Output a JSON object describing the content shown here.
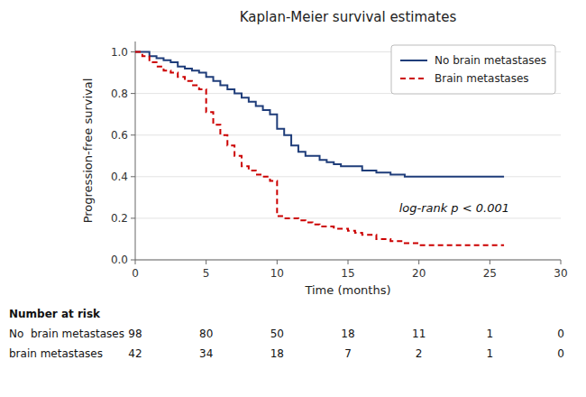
{
  "chart_data": {
    "type": "step",
    "title": "Kaplan-Meier survival estimates",
    "x_label": "Time (months)",
    "y_label": "Progression-free survival",
    "annotation": "log-rank p < 0.001",
    "xlim": [
      0,
      30
    ],
    "ylim": [
      0,
      1.05
    ],
    "xticks": [
      0,
      5,
      10,
      15,
      20,
      25,
      30
    ],
    "yticks": [
      {
        "value": 0.0,
        "label": "0.0"
      },
      0.2,
      0.4,
      0.6,
      0.8,
      {
        "value": 1.0,
        "label": "1.0"
      }
    ],
    "grid": true,
    "legend": "upper right",
    "series": [
      {
        "name": "No brain metastases",
        "color": "#1f3d7a",
        "line_style": "solid",
        "x": [
          0,
          0.5,
          1.0,
          1.5,
          2.0,
          2.5,
          3.0,
          3.5,
          4.0,
          4.5,
          5.0,
          5.5,
          6.0,
          6.5,
          7.0,
          7.5,
          8.0,
          8.5,
          9.0,
          9.5,
          10.0,
          10.5,
          11.0,
          11.5,
          12.0,
          12.5,
          13.0,
          13.5,
          14.0,
          14.5,
          15.0,
          16.0,
          17.0,
          18.0,
          19.0,
          20.0,
          25.0,
          26.0
        ],
        "values": [
          1.0,
          1.0,
          0.98,
          0.97,
          0.96,
          0.95,
          0.93,
          0.92,
          0.91,
          0.9,
          0.88,
          0.86,
          0.84,
          0.82,
          0.8,
          0.78,
          0.76,
          0.74,
          0.72,
          0.7,
          0.63,
          0.6,
          0.55,
          0.52,
          0.5,
          0.5,
          0.48,
          0.47,
          0.46,
          0.45,
          0.45,
          0.43,
          0.42,
          0.41,
          0.4,
          0.4,
          0.4,
          0.4
        ]
      },
      {
        "name": "Brain metastases",
        "color": "#cc0000",
        "line_style": "dashed",
        "x": [
          0,
          0.5,
          1.0,
          1.5,
          2.0,
          2.5,
          3.0,
          3.5,
          4.0,
          4.5,
          5.0,
          5.5,
          6.0,
          6.5,
          7.0,
          7.5,
          8.0,
          8.5,
          9.0,
          9.5,
          10.0,
          10.5,
          11.0,
          11.5,
          12.0,
          12.5,
          13.0,
          14.0,
          15.0,
          15.5,
          16.0,
          17.0,
          18.0,
          19.0,
          20.0,
          21.0,
          22.0,
          23.0,
          24.0,
          25.0,
          26.0
        ],
        "values": [
          1.0,
          0.98,
          0.95,
          0.93,
          0.91,
          0.9,
          0.88,
          0.86,
          0.84,
          0.82,
          0.71,
          0.65,
          0.6,
          0.55,
          0.5,
          0.45,
          0.43,
          0.41,
          0.4,
          0.38,
          0.21,
          0.2,
          0.2,
          0.19,
          0.18,
          0.17,
          0.16,
          0.15,
          0.14,
          0.13,
          0.12,
          0.1,
          0.09,
          0.08,
          0.07,
          0.07,
          0.07,
          0.07,
          0.07,
          0.07,
          0.07
        ]
      }
    ],
    "risk_table": {
      "label": "Number at risk",
      "x": [
        0,
        5,
        10,
        15,
        20,
        25,
        30
      ],
      "rows": [
        {
          "name": "No  brain metastases",
          "values": [
            98,
            80,
            50,
            18,
            11,
            1,
            0
          ]
        },
        {
          "name": "brain metastases",
          "values": [
            42,
            34,
            18,
            7,
            2,
            1,
            0
          ]
        }
      ]
    }
  }
}
